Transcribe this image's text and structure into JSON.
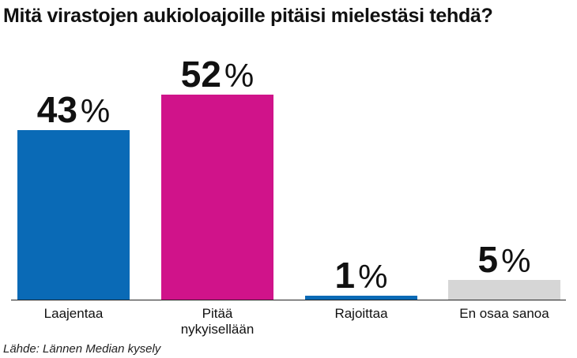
{
  "chart_data": {
    "type": "bar",
    "title": "Mitä virastojen aukioloajoille pitäisi mielestäsi tehdä?",
    "categories": [
      "Laajentaa",
      "Pitää nykyisellään",
      "Rajoittaa",
      "En osaa sanoa"
    ],
    "category_lines": [
      [
        "Laajentaa"
      ],
      [
        "Pitää",
        "nykyisellään"
      ],
      [
        "Rajoittaa"
      ],
      [
        "En osaa sanoa"
      ]
    ],
    "values": [
      43,
      52,
      1,
      5
    ],
    "value_unit": "%",
    "colors": [
      "#0a6ab6",
      "#d0138a",
      "#0a6ab6",
      "#d6d6d6"
    ],
    "ylim": [
      0,
      60
    ],
    "grid": false,
    "xlabel": "",
    "ylabel": "",
    "source": "Lähde: Lännen Median kysely"
  }
}
